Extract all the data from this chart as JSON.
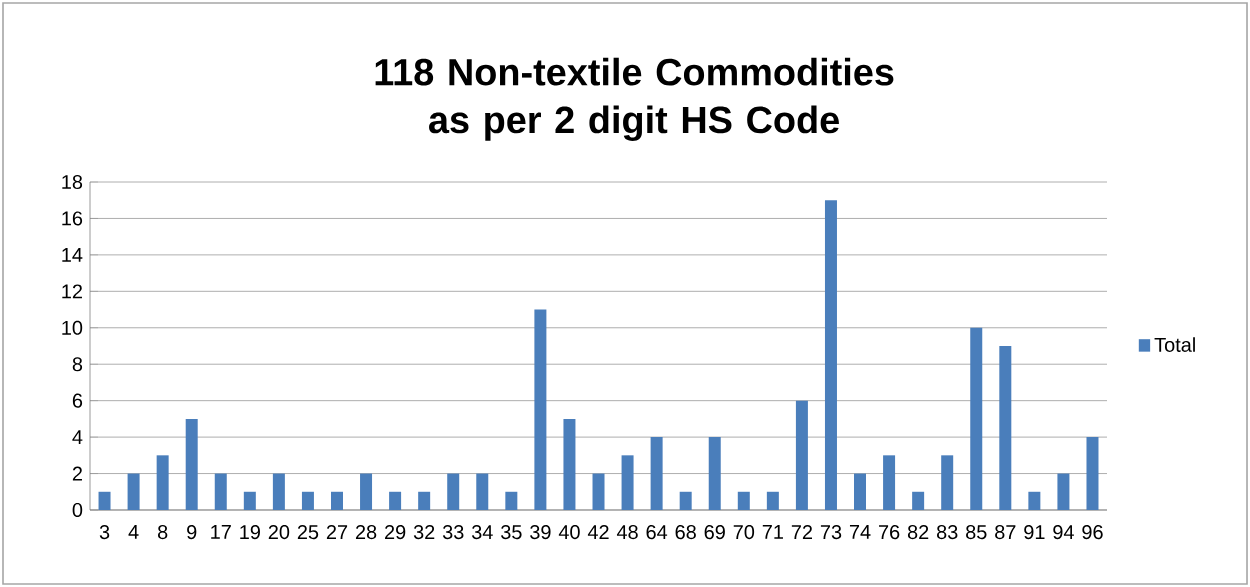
{
  "chart_data": {
    "type": "bar",
    "title": "118 Non-textile Commodities as per 2 digit HS Code",
    "categories": [
      "3",
      "4",
      "8",
      "9",
      "17",
      "19",
      "20",
      "25",
      "27",
      "28",
      "29",
      "32",
      "33",
      "34",
      "35",
      "39",
      "40",
      "42",
      "48",
      "64",
      "68",
      "69",
      "70",
      "71",
      "72",
      "73",
      "74",
      "76",
      "82",
      "83",
      "85",
      "87",
      "91",
      "94",
      "96"
    ],
    "series": [
      {
        "name": "Total",
        "color": "#4a7ebb",
        "values": [
          1,
          2,
          3,
          5,
          2,
          1,
          2,
          1,
          1,
          2,
          1,
          1,
          2,
          2,
          1,
          11,
          5,
          2,
          3,
          4,
          1,
          4,
          1,
          1,
          6,
          17,
          2,
          3,
          1,
          3,
          10,
          9,
          1,
          2,
          4
        ]
      }
    ],
    "ylim": [
      0,
      18
    ],
    "yticks": [
      0,
      2,
      4,
      6,
      8,
      10,
      12,
      14,
      16,
      18
    ],
    "grid": "y",
    "legend": "right"
  }
}
